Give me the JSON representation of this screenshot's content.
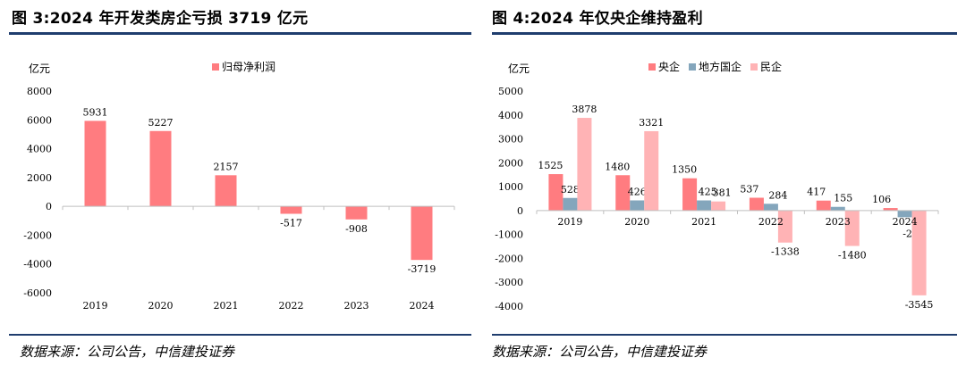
{
  "left": {
    "title": "图 3:2024 年开发类房企亏损 3719 亿元",
    "source": "数据来源：公司公告，中信建投证券",
    "chart_data": {
      "type": "bar",
      "title": "图 3:2024 年开发类房企亏损 3719 亿元",
      "ylabel": "亿元",
      "xlabel": "",
      "categories": [
        "2019",
        "2020",
        "2021",
        "2022",
        "2023",
        "2024"
      ],
      "series": [
        {
          "name": "归母净利润",
          "color": "#ff7c80",
          "values": [
            5931,
            5227,
            2157,
            -517,
            -908,
            -3719
          ]
        }
      ],
      "ylim": [
        -6000,
        8000
      ],
      "yticks": [
        8000,
        6000,
        4000,
        2000,
        0,
        -2000,
        -4000,
        -6000
      ],
      "legend": "top-center",
      "grid": false
    }
  },
  "right": {
    "title": "图 4:2024 年仅央企维持盈利",
    "source": "数据来源：公司公告，中信建投证券",
    "chart_data": {
      "type": "bar",
      "title": "图 4:2024 年仅央企维持盈利",
      "ylabel": "亿元",
      "xlabel": "",
      "categories": [
        "2019",
        "2020",
        "2021",
        "2022",
        "2023",
        "2024"
      ],
      "series": [
        {
          "name": "央企",
          "color": "#ff7c80",
          "values": [
            1525,
            1480,
            1350,
            537,
            417,
            106
          ]
        },
        {
          "name": "地方国企",
          "color": "#84a6bc",
          "values": [
            528,
            426,
            425,
            284,
            155,
            -279
          ]
        },
        {
          "name": "民企",
          "color": "#ffb3b5",
          "values": [
            3878,
            3321,
            381,
            -1338,
            -1480,
            -3545
          ]
        }
      ],
      "ylim": [
        -4000,
        5000
      ],
      "yticks": [
        5000,
        4000,
        3000,
        2000,
        1000,
        0,
        -1000,
        -2000,
        -3000,
        -4000
      ],
      "legend": "top-center",
      "grid": false
    }
  }
}
